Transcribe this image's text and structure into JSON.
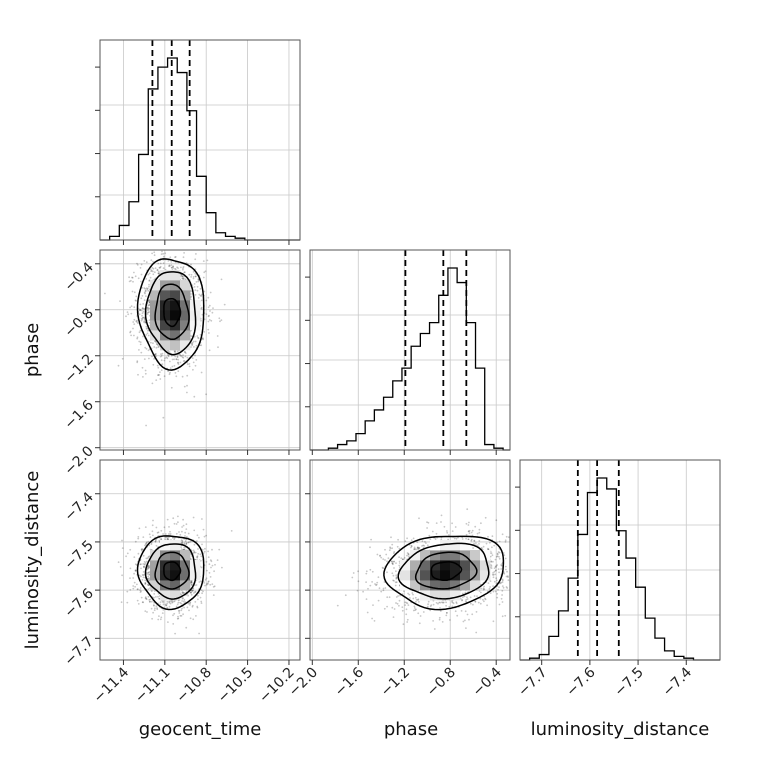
{
  "chart_data": {
    "type": "corner",
    "parameters": [
      "geocent_time",
      "phase",
      "luminosity_distance"
    ],
    "axis_labels": {
      "geocent_time": "geocent_time",
      "phase": "phase",
      "luminosity_distance": "luminosity_distance"
    },
    "ranges": {
      "geocent_time": [
        -11.57,
        -10.12
      ],
      "phase": [
        -2.02,
        -0.28
      ],
      "luminosity_distance": [
        -7.745,
        -7.33
      ]
    },
    "ticks": {
      "geocent_time": [
        -11.4,
        -11.1,
        -10.8,
        -10.5,
        -10.2
      ],
      "phase": [
        -2.0,
        -1.6,
        -1.2,
        -0.8,
        -0.4
      ],
      "luminosity_distance": [
        -7.7,
        -7.6,
        -7.5,
        -7.4
      ]
    },
    "tick_labels": {
      "geocent_time": [
        "−11.4",
        "−11.1",
        "−10.8",
        "−10.5",
        "−10.2"
      ],
      "phase": [
        "−2.0",
        "−1.6",
        "−1.2",
        "−0.8",
        "−0.4"
      ],
      "luminosity_distance": [
        "−7.7",
        "−7.6",
        "−7.5",
        "−7.4"
      ]
    },
    "quantiles": {
      "geocent_time": [
        -11.19,
        -11.05,
        -10.92
      ],
      "phase": [
        -1.19,
        -0.86,
        -0.66
      ],
      "luminosity_distance": [
        -7.625,
        -7.585,
        -7.54
      ]
    },
    "histograms": {
      "geocent_time": {
        "bins": [
          -11.57,
          -11.5,
          -11.43,
          -11.36,
          -11.29,
          -11.22,
          -11.15,
          -11.08,
          -11.01,
          -10.94,
          -10.87,
          -10.8,
          -10.73,
          -10.66,
          -10.59,
          -10.52,
          -10.45,
          -10.38,
          -10.31,
          -10.24,
          -10.17,
          -10.12
        ],
        "counts": [
          0,
          2,
          8,
          21,
          47,
          83,
          95,
          100,
          92,
          71,
          35,
          15,
          4,
          2,
          1,
          0,
          0,
          0,
          0,
          0,
          0
        ]
      },
      "phase": {
        "bins": [
          -2.02,
          -1.94,
          -1.86,
          -1.78,
          -1.7,
          -1.62,
          -1.54,
          -1.46,
          -1.38,
          -1.3,
          -1.22,
          -1.14,
          -1.06,
          -0.98,
          -0.9,
          -0.82,
          -0.74,
          -0.66,
          -0.58,
          -0.5,
          -0.42,
          -0.34,
          -0.28
        ],
        "counts": [
          0,
          0,
          1,
          3,
          5,
          9,
          16,
          22,
          29,
          38,
          45,
          57,
          64,
          70,
          85,
          100,
          92,
          70,
          45,
          3,
          1,
          0
        ]
      },
      "luminosity_distance": {
        "bins": [
          -7.745,
          -7.725,
          -7.705,
          -7.685,
          -7.665,
          -7.645,
          -7.625,
          -7.605,
          -7.585,
          -7.565,
          -7.545,
          -7.525,
          -7.505,
          -7.485,
          -7.465,
          -7.445,
          -7.425,
          -7.405,
          -7.385,
          -7.365,
          -7.345,
          -7.33
        ],
        "counts": [
          0,
          1,
          3,
          13,
          27,
          45,
          69,
          92,
          100,
          94,
          71,
          56,
          40,
          23,
          12,
          5,
          2,
          1,
          0,
          0,
          0
        ]
      }
    },
    "density_2d": [
      {
        "x": "geocent_time",
        "y": "phase",
        "center": [
          -11.05,
          -0.82
        ],
        "spread": [
          0.12,
          0.24
        ],
        "correlation": -0.05
      },
      {
        "x": "geocent_time",
        "y": "luminosity_distance",
        "center": [
          -11.05,
          -7.56
        ],
        "spread": [
          0.12,
          0.038
        ],
        "correlation": 0.0
      },
      {
        "x": "phase",
        "y": "luminosity_distance",
        "center": [
          -0.84,
          -7.56
        ],
        "spread": [
          0.26,
          0.038
        ],
        "correlation": 0.12
      }
    ],
    "grid": true
  }
}
